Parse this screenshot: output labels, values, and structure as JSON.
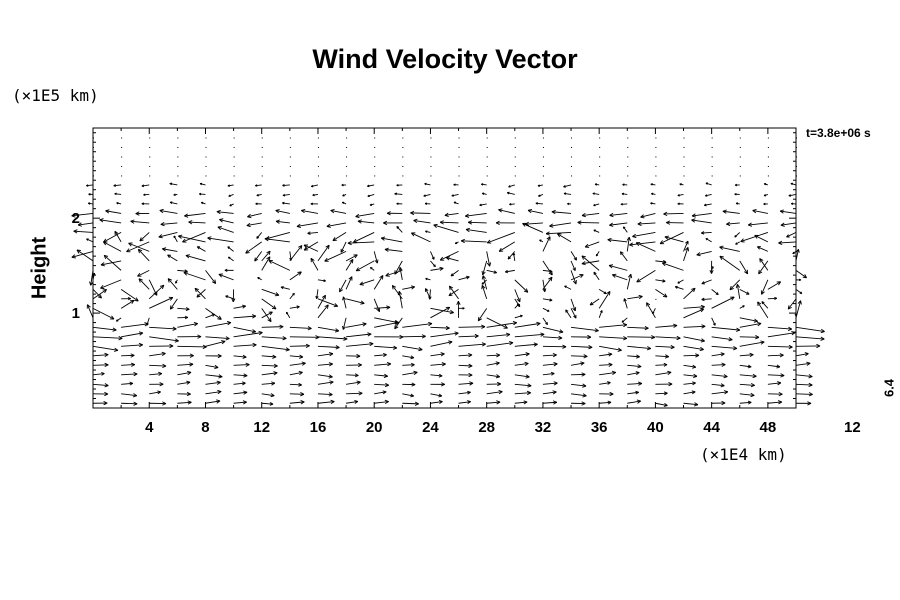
{
  "chart_data": {
    "type": "quiver",
    "title": "Wind Velocity Vector",
    "ylabel": "Height",
    "y_unit": "(×1E5 km)",
    "x_unit": "(×1E4 km)",
    "time_label": "t=3.8e+06 s",
    "reference_vector": {
      "magnitude": "6.4",
      "length_label": "12"
    },
    "xlim": [
      0,
      50
    ],
    "ylim": [
      0,
      2.95
    ],
    "x_ticks": [
      4,
      8,
      12,
      16,
      20,
      24,
      28,
      32,
      36,
      40,
      44,
      48
    ],
    "y_ticks": [
      1,
      2
    ],
    "grid_x": [
      0,
      2,
      4,
      6,
      8,
      10,
      12,
      14,
      16,
      18,
      20,
      22,
      24,
      26,
      28,
      30,
      32,
      34,
      36,
      38,
      40,
      42,
      44,
      46,
      48,
      50
    ],
    "grid_y": [
      0.05,
      0.15,
      0.25,
      0.35,
      0.45,
      0.55,
      0.65,
      0.75,
      0.85,
      0.95,
      1.05,
      1.15,
      1.25,
      1.35,
      1.45,
      1.55,
      1.65,
      1.75,
      1.85,
      1.95,
      2.05,
      2.15,
      2.25,
      2.35,
      2.45,
      2.55,
      2.65,
      2.75,
      2.85
    ],
    "bands": [
      {
        "y_min": 0.0,
        "y_max": 0.6,
        "u": 2.0,
        "v": 0.0,
        "var": 0.4
      },
      {
        "y_min": 0.6,
        "y_max": 0.9,
        "u": 3.5,
        "v": 0.0,
        "var": 0.8
      },
      {
        "y_min": 0.9,
        "y_max": 1.3,
        "u": 1.0,
        "v": 0.3,
        "var": 2.5
      },
      {
        "y_min": 1.3,
        "y_max": 1.7,
        "u": -0.6,
        "v": 0.0,
        "var": 2.5
      },
      {
        "y_min": 1.7,
        "y_max": 1.9,
        "u": -2.2,
        "v": 0.0,
        "var": 1.8
      },
      {
        "y_min": 1.9,
        "y_max": 2.1,
        "u": -2.5,
        "v": 0.0,
        "var": 0.6
      },
      {
        "y_min": 2.1,
        "y_max": 2.4,
        "u": -0.8,
        "v": 0.0,
        "var": 0.3
      },
      {
        "y_min": 2.4,
        "y_max": 2.95,
        "u": 0.0,
        "v": 0.0,
        "var": 0.05
      }
    ]
  }
}
